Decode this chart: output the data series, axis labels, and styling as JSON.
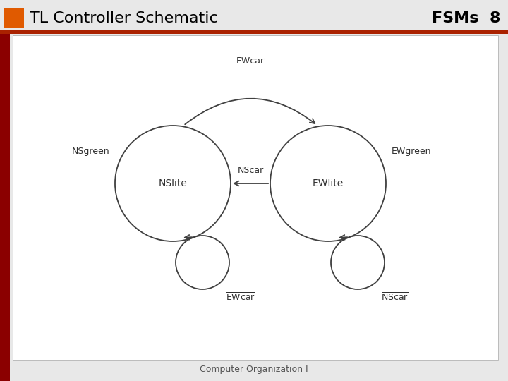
{
  "title": "TL Controller Schematic",
  "title_fontsize": 16,
  "title_color": "#000000",
  "slide_label": "FSMs  8",
  "slide_label_fontsize": 16,
  "footer": "Computer Organization I",
  "footer_fontsize": 9,
  "bg_color": "#e8e8e8",
  "content_bg": "#ffffff",
  "orange_rect_color": "#e05a00",
  "left_bar_color": "#8b0000",
  "ns_label": "NSlite",
  "ew_label": "EWlite",
  "nsgreen_label": "NSgreen",
  "ewgreen_label": "EWgreen",
  "ewcar_arc_label": "EWcar",
  "nscar_arrow_label": "NScar",
  "ns_self_label": "EWcar",
  "ew_self_label": "NScar",
  "line_color": "#404040",
  "text_color": "#303030"
}
